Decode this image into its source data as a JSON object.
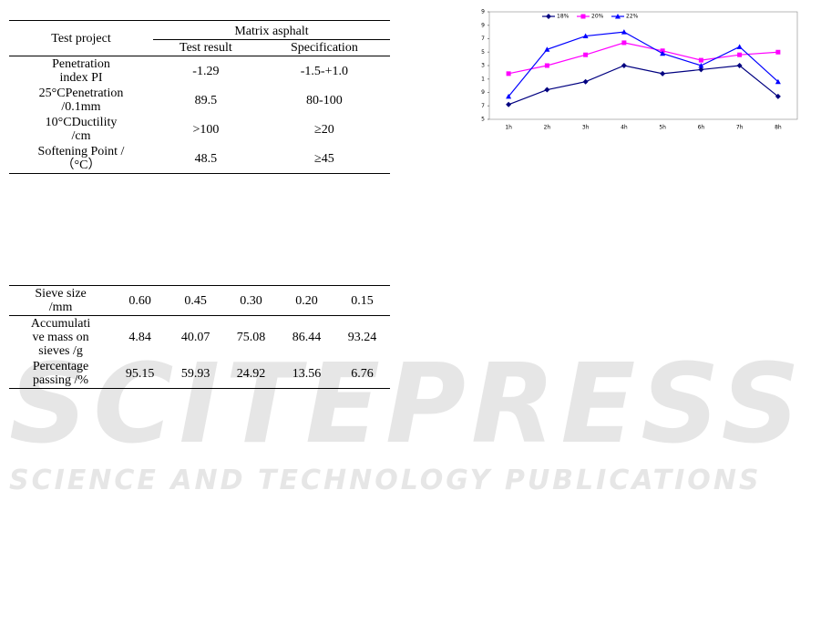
{
  "table1": {
    "header": {
      "first": "Test project",
      "group": "Matrix asphalt",
      "sub": [
        "Test result",
        "Specification"
      ]
    },
    "rows": [
      [
        "Penetration\nindex PI",
        "-1.29",
        "-1.5-+1.0"
      ],
      [
        "25°CPenetration\n/0.1mm",
        "89.5",
        "80-100"
      ],
      [
        "10°CDuctility\n/cm",
        ">100",
        "≥20"
      ],
      [
        "Softening Point /\n（°C）",
        "48.5",
        "≥45"
      ]
    ]
  },
  "table2": {
    "rows": [
      [
        "Sieve size\n/mm",
        "0.60",
        "0.45",
        "0.30",
        "0.20",
        "0.15"
      ],
      [
        "Accumulati\nve mass on\nsieves /g",
        "4.84",
        "40.07",
        "75.08",
        "86.44",
        "93.24"
      ],
      [
        "Percentage\npassing /%",
        "95.15",
        "59.93",
        "24.92",
        "13.56",
        "6.76"
      ]
    ]
  },
  "watermark": {
    "brand": "SCITEPRESS",
    "tagline": "SCIENCE AND TECHNOLOGY PUBLICATIONS"
  },
  "chart_data": {
    "type": "line",
    "categories": [
      "1h",
      "2h",
      "3h",
      "4h",
      "5h",
      "6h",
      "7h",
      "8h"
    ],
    "series": [
      {
        "name": "18%",
        "color": "#000080",
        "marker": "diamond",
        "values": [
          1.1,
          2.2,
          2.8,
          4.0,
          3.4,
          3.7,
          4.0,
          1.7
        ]
      },
      {
        "name": "20%",
        "color": "#ff00ff",
        "marker": "square",
        "values": [
          3.4,
          4.0,
          4.8,
          5.7,
          5.1,
          4.4,
          4.8,
          5.0
        ]
      },
      {
        "name": "22%",
        "color": "#0000ff",
        "marker": "triangle",
        "values": [
          1.7,
          5.2,
          6.2,
          6.5,
          4.9,
          4.0,
          5.4,
          2.8
        ]
      }
    ],
    "ylim": [
      0,
      8
    ],
    "yticks": [
      {
        "value": 0,
        "label": "5"
      },
      {
        "value": 1,
        "label": "7"
      },
      {
        "value": 2,
        "label": "9"
      },
      {
        "value": 3,
        "label": "1"
      },
      {
        "value": 4,
        "label": "3"
      },
      {
        "value": 5,
        "label": "5"
      },
      {
        "value": 6,
        "label": "7"
      },
      {
        "value": 7,
        "label": "9"
      },
      {
        "value": 8,
        "label": "9"
      }
    ],
    "legend": "top"
  }
}
